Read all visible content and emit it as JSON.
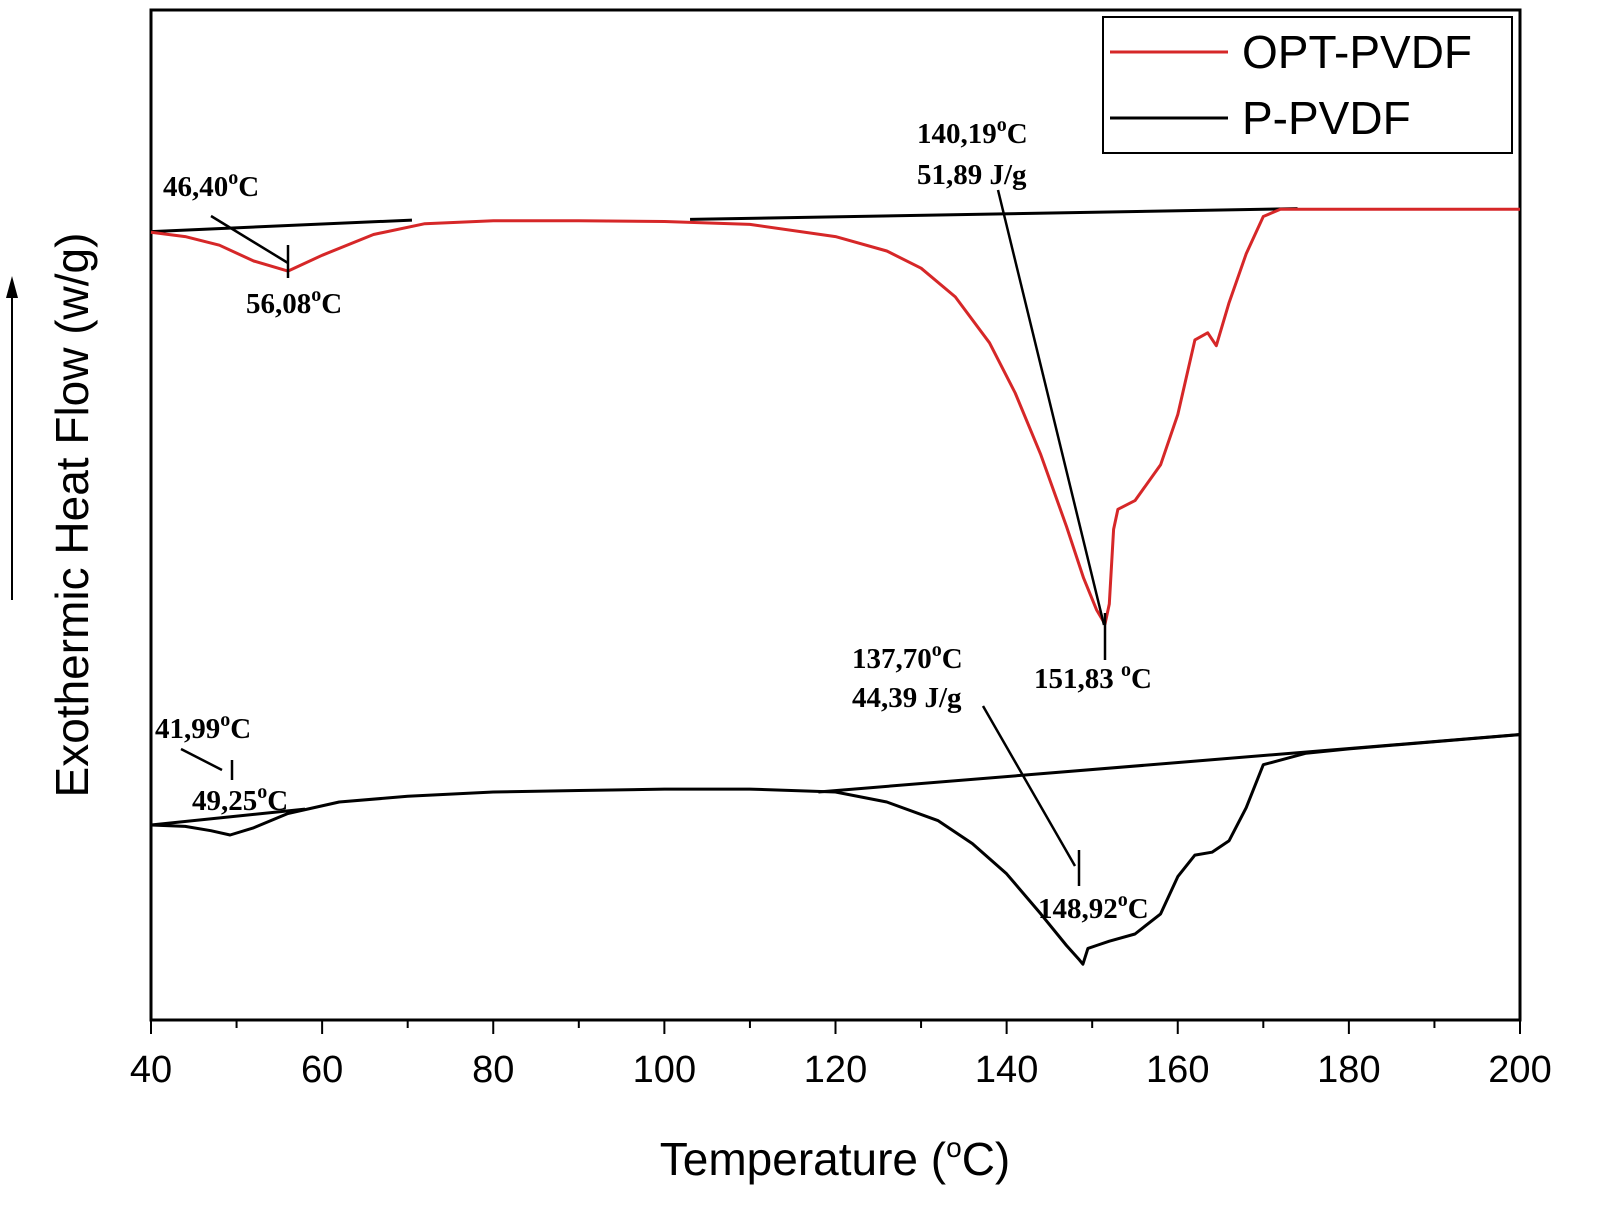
{
  "chart_data": {
    "type": "line",
    "xlabel": "Temperature (",
    "xlabel_sup": "o",
    "xlabel_end": "C)",
    "ylabel": "Exothermic Heat Flow (w/g)",
    "xlim": [
      40,
      200
    ],
    "x_ticks": [
      "40",
      "60",
      "80",
      "100",
      "120",
      "140",
      "160",
      "180",
      "200"
    ],
    "y_ticks_shown": false,
    "grid": false,
    "legend_position": "top-right",
    "colors": {
      "OPT-PVDF": "#d62728",
      "P-PVDF": "#000000"
    },
    "series": [
      {
        "name": "OPT-PVDF",
        "x": [
          40,
          44,
          48,
          52,
          56,
          60,
          66,
          72,
          80,
          90,
          100,
          110,
          120,
          126,
          130,
          134,
          138,
          141,
          144,
          147,
          149,
          150.5,
          151.5,
          152,
          152.5,
          153,
          155,
          158,
          160,
          162,
          163.5,
          164.5,
          166,
          168,
          170,
          172,
          176,
          180,
          190,
          200
        ],
        "y": [
          -0.3,
          -0.6,
          -1.2,
          -2.3,
          -3.0,
          -1.9,
          -0.45,
          0.3,
          0.5,
          0.5,
          0.45,
          0.25,
          -0.6,
          -1.6,
          -2.8,
          -4.8,
          -8.0,
          -11.5,
          -15.8,
          -20.8,
          -24.4,
          -26.6,
          -27.6,
          -26.2,
          -21.0,
          -19.6,
          -19.0,
          -16.5,
          -13.0,
          -7.8,
          -7.3,
          -8.2,
          -5.2,
          -1.8,
          0.8,
          1.3,
          1.3,
          1.3,
          1.3,
          1.3
        ]
      },
      {
        "name": "P-PVDF",
        "x": [
          40,
          44,
          47,
          49.25,
          52,
          56,
          62,
          70,
          80,
          90,
          100,
          110,
          120,
          126,
          132,
          136,
          140,
          144,
          147,
          148.5,
          148.92,
          149.5,
          150.5,
          152,
          155,
          158,
          160,
          162,
          164,
          166,
          168,
          170,
          175,
          180,
          190,
          200
        ],
        "y": [
          -41.6,
          -41.7,
          -42.0,
          -42.3,
          -41.8,
          -40.8,
          -40.0,
          -39.6,
          -39.3,
          -39.2,
          -39.1,
          -39.1,
          -39.3,
          -40.0,
          -41.3,
          -42.9,
          -45.0,
          -47.8,
          -50.0,
          -51.0,
          -51.3,
          -50.2,
          -50.0,
          -49.7,
          -49.2,
          -47.8,
          -45.2,
          -43.7,
          -43.5,
          -42.7,
          -40.4,
          -37.4,
          -36.6,
          -36.3,
          -35.8,
          -35.3
        ]
      }
    ],
    "baselines": [
      {
        "series": "OPT-PVDF",
        "x": [
          40,
          70.5
        ],
        "y": [
          -0.25,
          0.55
        ]
      },
      {
        "series": "OPT-PVDF",
        "x": [
          103,
          174
        ],
        "y": [
          0.6,
          1.35
        ]
      },
      {
        "series": "P-PVDF",
        "x": [
          40,
          58
        ],
        "y": [
          -41.6,
          -40.5
        ]
      },
      {
        "series": "P-PVDF",
        "x": [
          118,
          200
        ],
        "y": [
          -39.3,
          -35.3
        ]
      }
    ],
    "annotations": [
      {
        "id": "ann1",
        "text": "46,40",
        "sup": "o",
        "unit": "C"
      },
      {
        "id": "ann2",
        "text": "56,08",
        "sup": "o",
        "unit": "C"
      },
      {
        "id": "ann3",
        "text": "140,19",
        "sup": "o",
        "unit": "C"
      },
      {
        "id": "ann4",
        "text": "51,89 J/g"
      },
      {
        "id": "ann5",
        "text": "151,83 ",
        "sup": "o",
        "unit": "C"
      },
      {
        "id": "ann6",
        "text": "137,70",
        "sup": "o",
        "unit": "C"
      },
      {
        "id": "ann7",
        "text": "44,39 J/g"
      },
      {
        "id": "ann8",
        "text": "41,99",
        "sup": "o",
        "unit": "C"
      },
      {
        "id": "ann9",
        "text": "49,25",
        "sup": "o",
        "unit": "C"
      },
      {
        "id": "ann10",
        "text": "148,92",
        "sup": "o",
        "unit": "C"
      }
    ]
  }
}
